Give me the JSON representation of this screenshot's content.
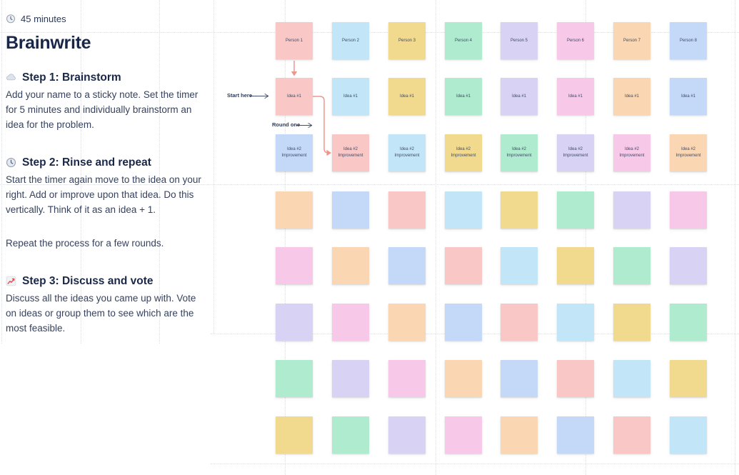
{
  "panel": {
    "duration": "45 minutes",
    "title": "Brainwrite",
    "steps": [
      {
        "icon": "cloud-icon",
        "heading": "Step 1: Brainstorm",
        "paragraphs": [
          "Add your name to a sticky note. Set the timer for 5 minutes and individually brainstorm an idea for the problem."
        ]
      },
      {
        "icon": "clock-icon",
        "heading": "Step 2: Rinse and repeat",
        "paragraphs": [
          "Start the timer again move to the idea on your right. Add or improve upon that idea. Do this vertically. Think of it as an idea + 1.",
          "Repeat the process for a few rounds."
        ]
      },
      {
        "icon": "chart-line-icon",
        "heading": "Step 3: Discuss and vote",
        "paragraphs": [
          "Discuss all the ideas you came up with. Vote on ideas or group them to see which are the most feasible."
        ]
      }
    ]
  },
  "canvas": {
    "annotations": {
      "start_here": "Start here",
      "round_one": "Round one"
    },
    "connector_color": "#F0958D",
    "sticky_palette": {
      "salmon": "#F9C8C6",
      "cyan": "#C2E6F8",
      "yellow": "#F1D98D",
      "mint": "#AFEBCE",
      "lavender": "#D8D2F5",
      "pink": "#F8C8E9",
      "peach": "#FAD7B2",
      "periwinkle": "#C3D9F7"
    },
    "rows": [
      {
        "name": "person-row",
        "cells": [
          {
            "color": "salmon",
            "text": "Person 1"
          },
          {
            "color": "cyan",
            "text": "Person 2"
          },
          {
            "color": "yellow",
            "text": "Person 3"
          },
          {
            "color": "mint",
            "text": "Person 4"
          },
          {
            "color": "lavender",
            "text": "Person 5"
          },
          {
            "color": "pink",
            "text": "Person 6"
          },
          {
            "color": "peach",
            "text": "Person 7"
          },
          {
            "color": "periwinkle",
            "text": "Person 8"
          }
        ]
      },
      {
        "name": "idea1-row",
        "cells": [
          {
            "color": "salmon",
            "text": "Idea #1"
          },
          {
            "color": "cyan",
            "text": "Idea #1"
          },
          {
            "color": "yellow",
            "text": "Idea #1"
          },
          {
            "color": "mint",
            "text": "Idea #1"
          },
          {
            "color": "lavender",
            "text": "Idea #1"
          },
          {
            "color": "pink",
            "text": "Idea #1"
          },
          {
            "color": "peach",
            "text": "Idea #1"
          },
          {
            "color": "periwinkle",
            "text": "Idea #1"
          }
        ]
      },
      {
        "name": "idea2-row",
        "cells": [
          {
            "color": "periwinkle",
            "text": "Idea #2 Improvement"
          },
          {
            "color": "salmon",
            "text": "Idea #2 Improvement"
          },
          {
            "color": "cyan",
            "text": "Idea #2 Improvement"
          },
          {
            "color": "yellow",
            "text": "Idea #2 Improvement"
          },
          {
            "color": "mint",
            "text": "Idea #2 Improvement"
          },
          {
            "color": "lavender",
            "text": "Idea #2 Improvement"
          },
          {
            "color": "pink",
            "text": "Idea #2 Improvement"
          },
          {
            "color": "peach",
            "text": "Idea #2 Improvement"
          }
        ]
      },
      {
        "name": "blank-row-1",
        "cells": [
          {
            "color": "peach",
            "text": ""
          },
          {
            "color": "periwinkle",
            "text": ""
          },
          {
            "color": "salmon",
            "text": ""
          },
          {
            "color": "cyan",
            "text": ""
          },
          {
            "color": "yellow",
            "text": ""
          },
          {
            "color": "mint",
            "text": ""
          },
          {
            "color": "lavender",
            "text": ""
          },
          {
            "color": "pink",
            "text": ""
          }
        ]
      },
      {
        "name": "blank-row-2",
        "cells": [
          {
            "color": "pink",
            "text": ""
          },
          {
            "color": "peach",
            "text": ""
          },
          {
            "color": "periwinkle",
            "text": ""
          },
          {
            "color": "salmon",
            "text": ""
          },
          {
            "color": "cyan",
            "text": ""
          },
          {
            "color": "yellow",
            "text": ""
          },
          {
            "color": "mint",
            "text": ""
          },
          {
            "color": "lavender",
            "text": ""
          }
        ]
      },
      {
        "name": "blank-row-3",
        "cells": [
          {
            "color": "lavender",
            "text": ""
          },
          {
            "color": "pink",
            "text": ""
          },
          {
            "color": "peach",
            "text": ""
          },
          {
            "color": "periwinkle",
            "text": ""
          },
          {
            "color": "salmon",
            "text": ""
          },
          {
            "color": "cyan",
            "text": ""
          },
          {
            "color": "yellow",
            "text": ""
          },
          {
            "color": "mint",
            "text": ""
          }
        ]
      },
      {
        "name": "blank-row-4",
        "cells": [
          {
            "color": "mint",
            "text": ""
          },
          {
            "color": "lavender",
            "text": ""
          },
          {
            "color": "pink",
            "text": ""
          },
          {
            "color": "peach",
            "text": ""
          },
          {
            "color": "periwinkle",
            "text": ""
          },
          {
            "color": "salmon",
            "text": ""
          },
          {
            "color": "cyan",
            "text": ""
          },
          {
            "color": "yellow",
            "text": ""
          }
        ]
      },
      {
        "name": "blank-row-5",
        "cells": [
          {
            "color": "yellow",
            "text": ""
          },
          {
            "color": "mint",
            "text": ""
          },
          {
            "color": "lavender",
            "text": ""
          },
          {
            "color": "pink",
            "text": ""
          },
          {
            "color": "peach",
            "text": ""
          },
          {
            "color": "periwinkle",
            "text": ""
          },
          {
            "color": "salmon",
            "text": ""
          },
          {
            "color": "cyan",
            "text": ""
          }
        ]
      }
    ]
  }
}
